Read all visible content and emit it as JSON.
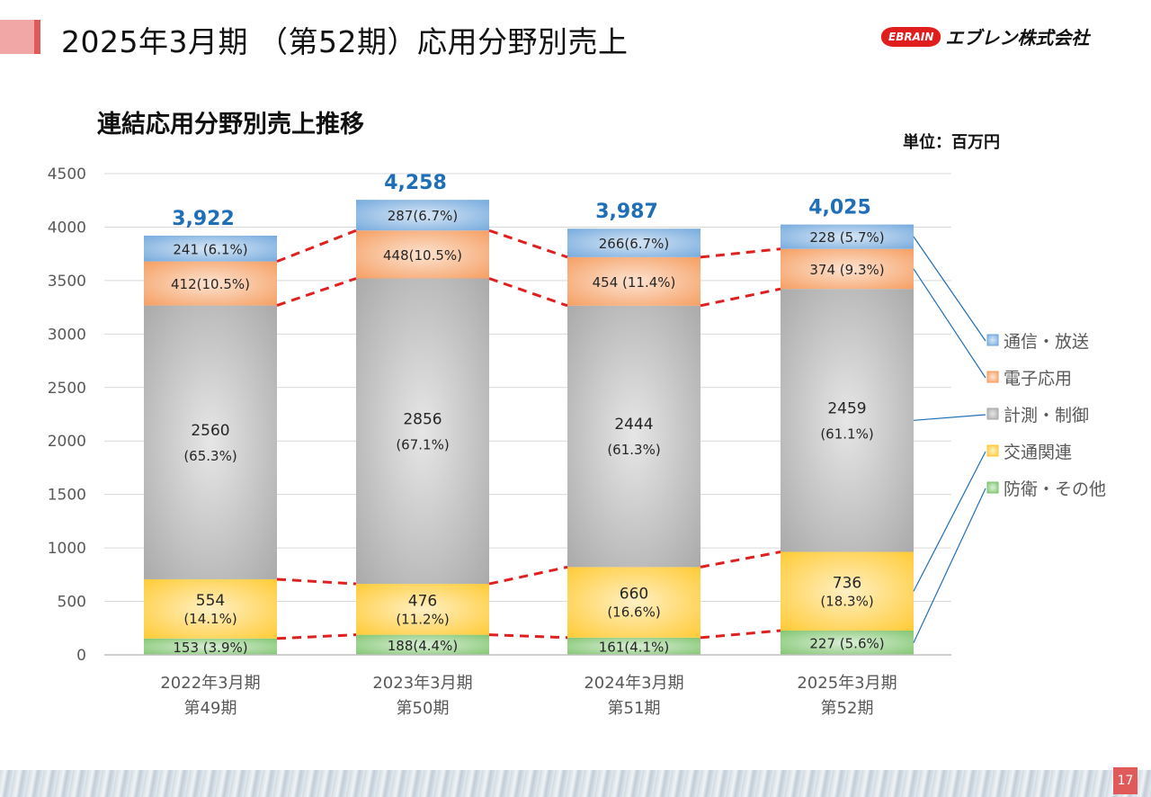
{
  "header": {
    "title": "2025年3月期 （第52期）応用分野別売上",
    "logo_mark": "EBRAIN",
    "logo_text": "エブレン株式会社",
    "accent_color": "#e05a5a"
  },
  "page_number": "17",
  "chart_data": {
    "type": "bar",
    "stacked": true,
    "title": "連結応用分野別売上推移",
    "unit_label": "単位：百万円",
    "categories": [
      "2022年3月期\n第49期",
      "2023年3月期\n第50期",
      "2024年3月期\n第51期",
      "2025年3月期\n第52期"
    ],
    "ylim": [
      0,
      4500
    ],
    "yticks": [
      0,
      500,
      1000,
      1500,
      2000,
      2500,
      3000,
      3500,
      4000,
      4500
    ],
    "grid": true,
    "legend_position": "right",
    "totals": [
      "3,922",
      "4,258",
      "3,987",
      "4,025"
    ],
    "series": [
      {
        "name": "防衛・その他",
        "color": "#7cc36b",
        "values": [
          153,
          188,
          161,
          227
        ],
        "labels": [
          "153 (3.9%)",
          "188(4.4%)",
          "161(4.1%)",
          "227 (5.6%)"
        ]
      },
      {
        "name": "交通関連",
        "color": "#ffc82c",
        "values": [
          554,
          476,
          660,
          736
        ],
        "labels": [
          "554\n(14.1%)",
          "476\n(11.2%)",
          "660\n(16.6%)",
          "736\n(18.3%)"
        ]
      },
      {
        "name": "計測・制御",
        "color": "#a6a6a6",
        "values": [
          2560,
          2856,
          2444,
          2459
        ],
        "labels": [
          "2560\n(65.3%)",
          "2856\n(67.1%)",
          "2444\n(61.3%)",
          "2459\n(61.1%)"
        ]
      },
      {
        "name": "電子応用",
        "color": "#f59a5b",
        "values": [
          412,
          448,
          454,
          374
        ],
        "labels": [
          "412(10.5%)",
          "448(10.5%)",
          "454 (11.4%)",
          "374 (9.3%)"
        ]
      },
      {
        "name": "通信・放送",
        "color": "#6fa6dc",
        "values": [
          241,
          287,
          266,
          228
        ],
        "labels": [
          "241 (6.1%)",
          "287(6.7%)",
          "266(6.7%)",
          "228 (5.7%)"
        ]
      }
    ],
    "legend_order": [
      "通信・放送",
      "電子応用",
      "計測・制御",
      "交通関連",
      "防衛・その他"
    ],
    "total_color": "#1f6fb8",
    "connector_color": "#e02020"
  }
}
